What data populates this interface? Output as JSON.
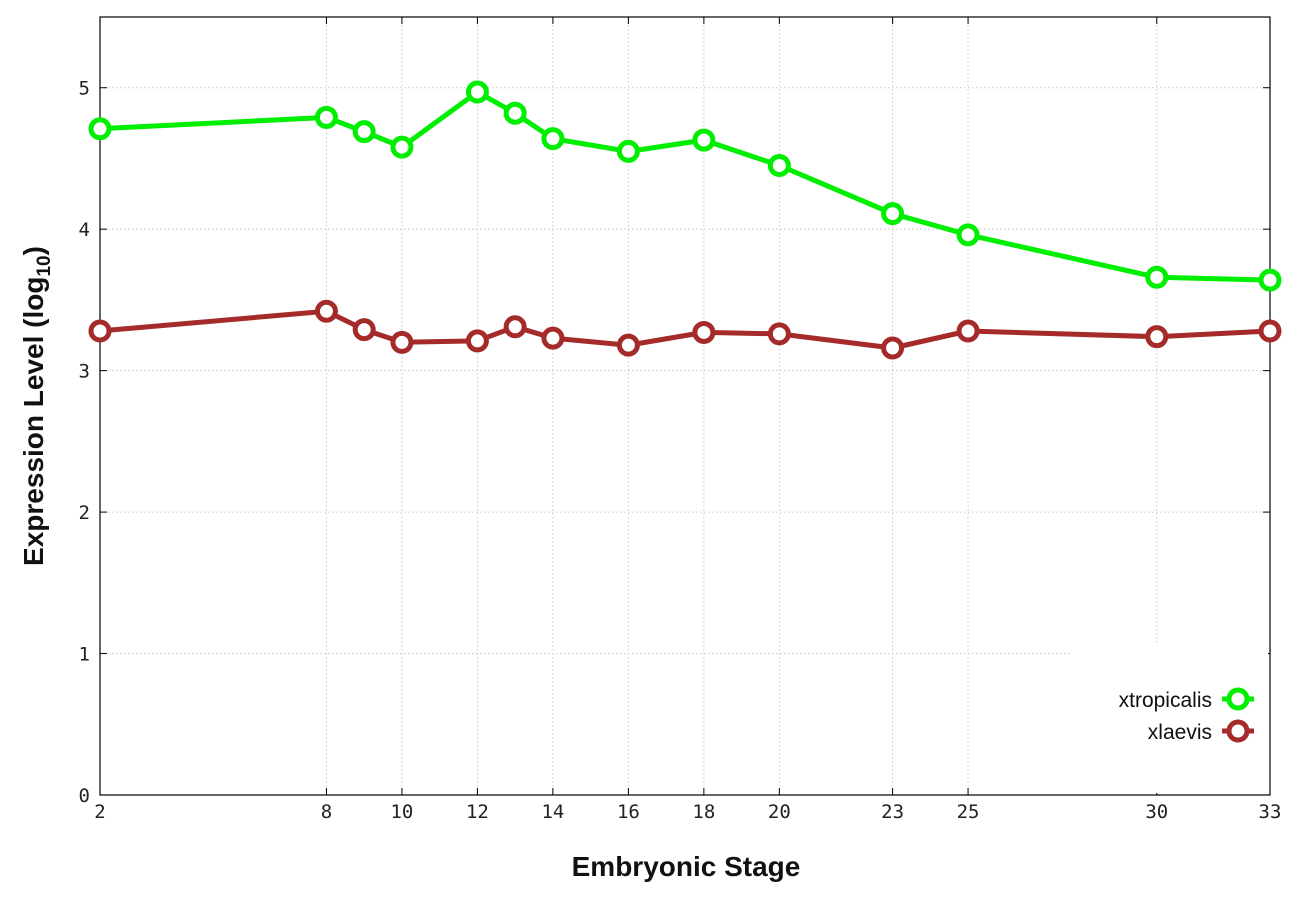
{
  "chart_data": {
    "type": "line",
    "xlabel": "Embryonic Stage",
    "ylabel_main": "Expression Level (log",
    "ylabel_sub": "10",
    "ylabel_close": ")",
    "x": [
      2,
      8,
      9,
      10,
      12,
      13,
      14,
      16,
      18,
      20,
      23,
      25,
      30,
      33
    ],
    "xticks": [
      2,
      8,
      10,
      12,
      14,
      16,
      18,
      20,
      23,
      25,
      30,
      33
    ],
    "xlim": [
      2,
      33
    ],
    "yticks": [
      0,
      1,
      2,
      3,
      4,
      5
    ],
    "ylim": [
      0,
      5.5
    ],
    "grid": true,
    "legend_position": "bottom-right",
    "series": [
      {
        "name": "xtropicalis",
        "color": "#00ee00",
        "values": [
          4.71,
          4.79,
          4.69,
          4.58,
          4.97,
          4.82,
          4.64,
          4.55,
          4.63,
          4.45,
          4.11,
          3.96,
          3.66,
          3.64
        ]
      },
      {
        "name": "xlaevis",
        "color": "#a52a2a",
        "values": [
          3.28,
          3.42,
          3.29,
          3.2,
          3.21,
          3.31,
          3.23,
          3.18,
          3.27,
          3.26,
          3.16,
          3.28,
          3.24,
          3.28
        ]
      }
    ]
  }
}
